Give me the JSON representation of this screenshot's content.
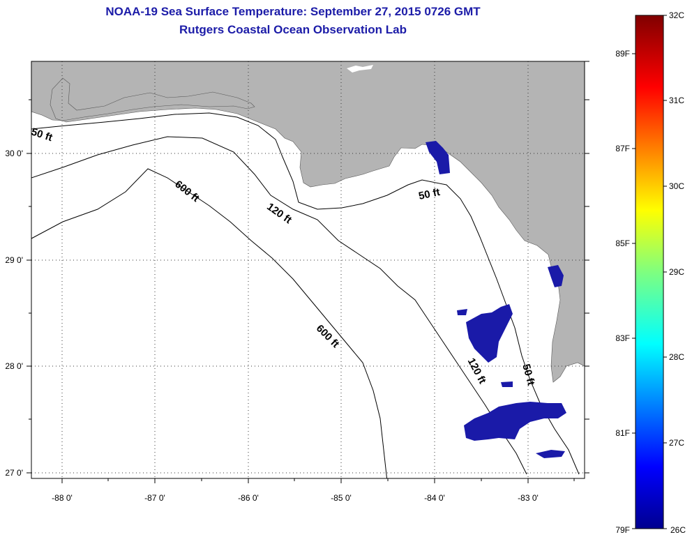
{
  "header": {
    "title": "NOAA-19 Sea Surface Temperature:  September 27, 2015 0726 GMT",
    "subtitle": "Rutgers Coastal Ocean Observation Lab"
  },
  "map": {
    "lon_ticks": [
      "-88 0'",
      "-87 0'",
      "-86 0'",
      "-85 0'",
      "-84 0'",
      "-83 0'"
    ],
    "lat_ticks": [
      "30 0'",
      "29 0'",
      "28 0'",
      "27 0'"
    ],
    "contour_labels": [
      "50 ft",
      "600 ft",
      "120 ft",
      "50 ft",
      "600 ft",
      "120 ft",
      "50 ft"
    ],
    "colors": {
      "land": "#b4b4b4",
      "sea": "#ffffff",
      "sst_patch": "#1a1aa8",
      "contour": "#000000",
      "title": "#1c1ca8"
    }
  },
  "colorbar": {
    "celsius_labels": [
      "32C",
      "31C",
      "30C",
      "29C",
      "28C",
      "27C",
      "26C"
    ],
    "fahrenheit_labels": [
      "89F",
      "87F",
      "85F",
      "83F",
      "81F",
      "79F"
    ],
    "range_c": [
      26,
      32
    ]
  }
}
